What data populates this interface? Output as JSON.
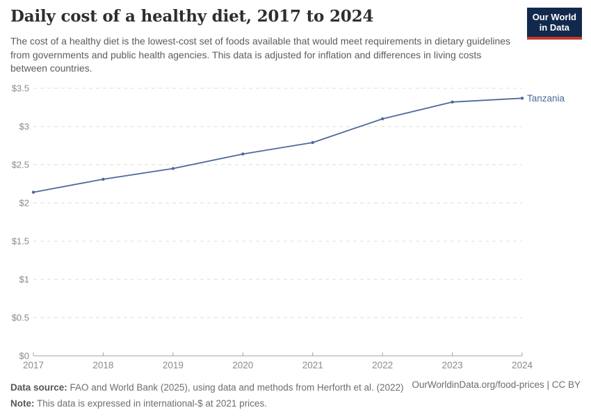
{
  "header": {
    "title": "Daily cost of a healthy diet, 2017 to 2024",
    "subtitle": "The cost of a healthy diet is the lowest-cost set of foods available that would meet requirements in dietary guidelines from governments and public health agencies. This data is adjusted for inflation and differences in living costs between countries.",
    "logo": {
      "line1": "Our World",
      "line2": "in Data",
      "bg_color": "#12294d",
      "accent_color": "#c5392b"
    }
  },
  "chart_data": {
    "type": "line",
    "title": "Daily cost of a healthy diet, 2017 to 2024",
    "x": [
      2017,
      2018,
      2019,
      2020,
      2021,
      2022,
      2023,
      2024
    ],
    "xtick_labels": [
      "2017",
      "2018",
      "2019",
      "2020",
      "2021",
      "2022",
      "2023",
      "2024"
    ],
    "series": [
      {
        "name": "Tanzania",
        "color": "#4c6a9c",
        "values": [
          2.14,
          2.31,
          2.45,
          2.64,
          2.79,
          3.1,
          3.32,
          3.37
        ]
      }
    ],
    "unit": "$",
    "ylim": [
      0,
      3.5
    ],
    "ytick_values": [
      0,
      0.5,
      1,
      1.5,
      2,
      2.5,
      3,
      3.5
    ],
    "ytick_labels": [
      "$0",
      "$0.5",
      "$1",
      "$1.5",
      "$2",
      "$2.5",
      "$3",
      "$3.5"
    ],
    "grid": "horizontal-dashed",
    "grid_color": "#dcdcdc",
    "axis_color": "#a3a3a3",
    "tick_label_color": "#8a8a8a",
    "end_label": "Tanzania",
    "legend_position": "end-of-line"
  },
  "footer": {
    "source_label": "Data source:",
    "source_text": " FAO and World Bank (2025), using data and methods from Herforth et al. (2022)",
    "note_label": "Note:",
    "note_text": " This data is expressed in international-$ at 2021 prices.",
    "link": "OurWorldinData.org/food-prices | CC BY"
  }
}
